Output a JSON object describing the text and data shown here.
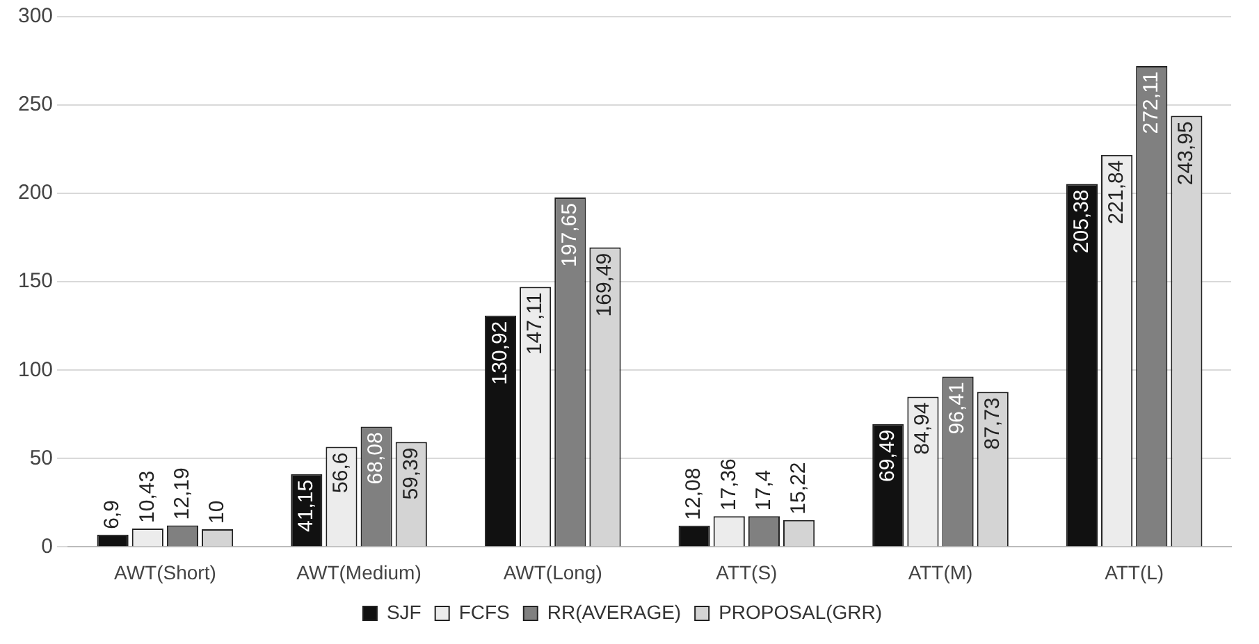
{
  "chart_data": {
    "type": "bar",
    "categories": [
      "AWT(Short)",
      "AWT(Medium)",
      "AWT(Long)",
      "ATT(S)",
      "ATT(M)",
      "ATT(L)"
    ],
    "series": [
      {
        "name": "SJF",
        "color": "#111111",
        "values": [
          6.9,
          41.15,
          130.92,
          12.08,
          69.49,
          205.38
        ],
        "value_labels": [
          "6,9",
          "41,15",
          "130,92",
          "12,08",
          "69,49",
          "205,38"
        ]
      },
      {
        "name": "FCFS",
        "color": "#ececec",
        "values": [
          10.43,
          56.6,
          147.11,
          17.36,
          84.94,
          221.84
        ],
        "value_labels": [
          "10,43",
          "56,6",
          "147,11",
          "17,36",
          "84,94",
          "221,84"
        ]
      },
      {
        "name": "RR(AVERAGE)",
        "color": "#808080",
        "values": [
          12.19,
          68.08,
          197.65,
          17.4,
          96.41,
          272.11
        ],
        "value_labels": [
          "12,19",
          "68,08",
          "197,65",
          "17,4",
          "96,41",
          "272,11"
        ]
      },
      {
        "name": "PROPOSAL(GRR)",
        "color": "#d4d4d4",
        "values": [
          10,
          59.39,
          169.49,
          15.22,
          87.73,
          243.95
        ],
        "value_labels": [
          "10",
          "59,39",
          "169,49",
          "15,22",
          "87,73",
          "243,95"
        ]
      }
    ],
    "ylim": [
      0,
      300
    ],
    "yticks": [
      0,
      50,
      100,
      150,
      200,
      250,
      300
    ],
    "grid": "y",
    "legend": "bottom"
  }
}
